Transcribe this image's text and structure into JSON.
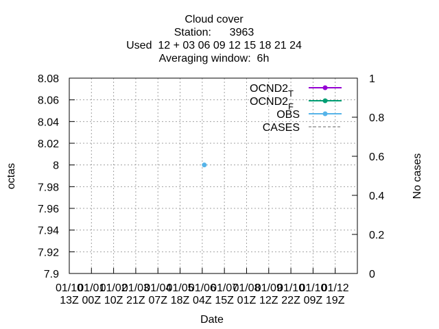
{
  "chart_data": {
    "type": "line",
    "title_lines": [
      "Cloud cover",
      "Station:      3963",
      "Used  12 + 03 06 09 12 15 18 21 24",
      "Averaging window:  6h"
    ],
    "xlabel": "Date",
    "ylabel": "octas",
    "y2label": "No cases",
    "ylim": [
      7.9,
      8.08
    ],
    "yticks": [
      "8.08",
      "8.06",
      "8.04",
      "8.02",
      "8",
      "7.98",
      "7.96",
      "7.94",
      "7.92",
      "7.9"
    ],
    "y2lim": [
      0,
      1
    ],
    "y2ticks": [
      "0",
      "0.2",
      "0.4",
      "0.6",
      "0.8",
      "1"
    ],
    "xticks": [
      [
        "01/10",
        "13Z"
      ],
      [
        "01/01",
        "00Z"
      ],
      [
        "01/02",
        "10Z"
      ],
      [
        "01/03",
        "21Z"
      ],
      [
        "01/04",
        "07Z"
      ],
      [
        "01/05",
        "18Z"
      ],
      [
        "01/06",
        "04Z"
      ],
      [
        "01/07",
        "15Z"
      ],
      [
        "01/08",
        "01Z"
      ],
      [
        "01/09",
        "12Z"
      ],
      [
        "01/10",
        "22Z"
      ],
      [
        "01/10",
        "09Z"
      ],
      [
        "01/12",
        "19Z"
      ]
    ],
    "grid": true,
    "legend_position": "top-right",
    "series": [
      {
        "name": "OCND2",
        "subscript": "T",
        "color": "#9400d3",
        "style": "solid",
        "points": []
      },
      {
        "name": "OCND2",
        "subscript": "F",
        "color": "#009e73",
        "style": "solid",
        "points": []
      },
      {
        "name": "OBS",
        "subscript": "",
        "color": "#56b4e9",
        "style": "solid",
        "points": [
          {
            "x_index": 6,
            "y": 8.0
          }
        ]
      },
      {
        "name": "CASES",
        "subscript": "",
        "color": "#808080",
        "style": "dashed",
        "points": []
      }
    ]
  }
}
